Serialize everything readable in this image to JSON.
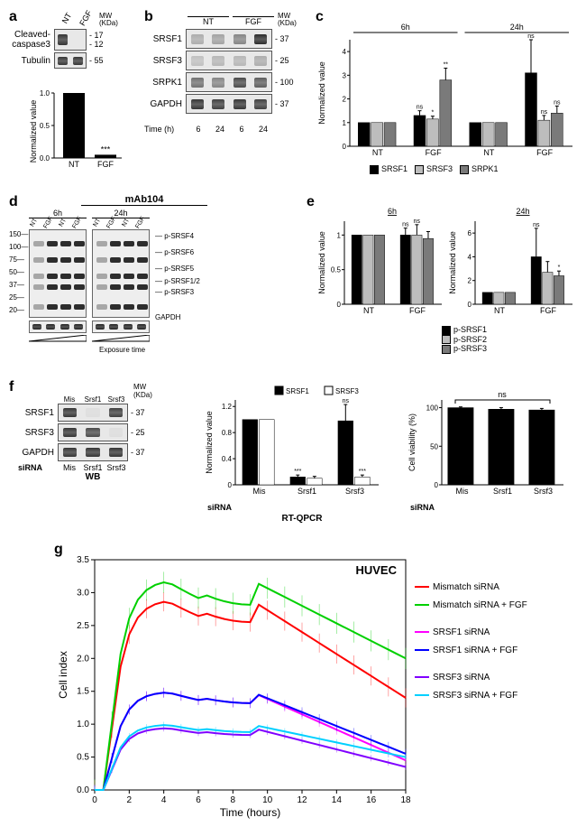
{
  "panel_a": {
    "label": "a",
    "lanes": [
      "NT",
      "FGF"
    ],
    "mw_header": "MW\n(KDa)",
    "rows": [
      {
        "label": "Cleaved-\ncaspase3",
        "mw": [
          "17",
          "12"
        ],
        "bands": [
          0.9,
          0.0,
          0.7,
          0.0
        ]
      },
      {
        "label": "Tubulin",
        "mw": [
          "55"
        ],
        "bands": [
          0.9,
          0.9
        ]
      }
    ],
    "chart": {
      "ylab": "Normalized value",
      "ymax": 1.0,
      "bars": [
        {
          "x": "NT",
          "v": 1.0
        },
        {
          "x": "FGF",
          "v": 0.05
        }
      ],
      "sig": "***",
      "bar_color": "#000000"
    }
  },
  "panel_b": {
    "label": "b",
    "cond": [
      "NT",
      "FGF"
    ],
    "mw_header": "MW\n(KDa)",
    "time_label": "Time (h)",
    "time": [
      "6",
      "24",
      "6",
      "24"
    ],
    "rows": [
      {
        "label": "SRSF1",
        "mw": "37",
        "bands": [
          0.3,
          0.35,
          0.5,
          0.95
        ]
      },
      {
        "label": "SRSF3",
        "mw": "25",
        "bands": [
          0.2,
          0.25,
          0.25,
          0.3
        ]
      },
      {
        "label": "SRPK1",
        "mw": "100",
        "bands": [
          0.6,
          0.5,
          0.8,
          0.7
        ]
      },
      {
        "label": "GAPDH",
        "mw": "37",
        "bands": [
          0.9,
          0.85,
          0.9,
          0.85
        ]
      }
    ]
  },
  "panel_c": {
    "label": "c",
    "ylab": "Normalized value",
    "ymax": 4.5,
    "groups": [
      "NT",
      "FGF",
      "NT",
      "FGF"
    ],
    "group_spans": [
      {
        "label": "6h",
        "cols": [
          0,
          1
        ]
      },
      {
        "label": "24h",
        "cols": [
          2,
          3
        ]
      }
    ],
    "series": [
      {
        "name": "SRSF1",
        "color": "#000000",
        "vals": [
          1.0,
          1.3,
          1.0,
          3.1
        ],
        "err": [
          0,
          0.2,
          0,
          1.4
        ],
        "sig": [
          "",
          "ns",
          "",
          "ns"
        ]
      },
      {
        "name": "SRSF3",
        "color": "#bdbdbd",
        "vals": [
          1.0,
          1.15,
          1.0,
          1.1
        ],
        "err": [
          0,
          0.12,
          0,
          0.2
        ],
        "sig": [
          "",
          "*",
          "",
          "ns"
        ]
      },
      {
        "name": "SRPK1",
        "color": "#7a7a7a",
        "vals": [
          1.0,
          2.8,
          1.0,
          1.4
        ],
        "err": [
          0,
          0.5,
          0,
          0.3
        ],
        "sig": [
          "",
          "**",
          "",
          "ns"
        ]
      }
    ]
  },
  "panel_d": {
    "label": "d",
    "title": "mAb104",
    "time_groups": [
      "6h",
      "24h"
    ],
    "lanes": [
      "NT",
      "FGF",
      "NT",
      "FGF"
    ],
    "mw_ladder": [
      "150",
      "100",
      "75",
      "50",
      "37",
      "25",
      "20"
    ],
    "row_labels": [
      "p-SRSF4",
      "p-SRSF6",
      "p-SRSF5",
      "p-SRSF1/2",
      "p-SRSF3"
    ],
    "loading": "GAPDH",
    "exposure_label": "Exposure time"
  },
  "panel_e": {
    "label": "e",
    "ylab": "Normalized value",
    "charts": [
      {
        "title": "6h",
        "ymax": 1.2,
        "groups": [
          "NT",
          "FGF"
        ],
        "series": [
          {
            "name": "p-SRSF1",
            "color": "#000000",
            "vals": [
              1.0,
              1.0
            ],
            "err": [
              0,
              0.1
            ],
            "sig": [
              "",
              "ns"
            ]
          },
          {
            "name": "p-SRSF2",
            "color": "#bdbdbd",
            "vals": [
              1.0,
              1.0
            ],
            "err": [
              0,
              0.15
            ],
            "sig": [
              "",
              "ns"
            ]
          },
          {
            "name": "p-SRSF3",
            "color": "#7a7a7a",
            "vals": [
              1.0,
              0.95
            ],
            "err": [
              0,
              0.1
            ],
            "sig": [
              "",
              ""
            ]
          }
        ]
      },
      {
        "title": "24h",
        "ymax": 7.0,
        "groups": [
          "NT",
          "FGF"
        ],
        "series": [
          {
            "name": "p-SRSF1",
            "color": "#000000",
            "vals": [
              1.0,
              4.0
            ],
            "err": [
              0,
              2.4
            ],
            "sig": [
              "",
              "ns"
            ]
          },
          {
            "name": "p-SRSF2",
            "color": "#bdbdbd",
            "vals": [
              1.0,
              2.7
            ],
            "err": [
              0,
              0.9
            ],
            "sig": [
              "",
              ""
            ]
          },
          {
            "name": "p-SRSF3",
            "color": "#7a7a7a",
            "vals": [
              1.0,
              2.4
            ],
            "err": [
              0,
              0.4
            ],
            "sig": [
              "",
              "*"
            ]
          }
        ]
      }
    ],
    "legend": [
      "p-SRSF1",
      "p-SRSF2",
      "p-SRSF3"
    ],
    "legend_colors": [
      "#000000",
      "#bdbdbd",
      "#7a7a7a"
    ]
  },
  "panel_f": {
    "label": "f",
    "mw_header": "MW\n(KDa)",
    "lanes": [
      "Mis",
      "Srsf1",
      "Srsf3"
    ],
    "lane_label": "siRNA",
    "wb_title": "WB",
    "rows": [
      {
        "label": "SRSF1",
        "mw": "37",
        "bands": [
          0.9,
          0.05,
          0.85
        ]
      },
      {
        "label": "SRSF3",
        "mw": "25",
        "bands": [
          0.9,
          0.8,
          0.05
        ]
      },
      {
        "label": "GAPDH",
        "mw": "37",
        "bands": [
          0.9,
          0.9,
          0.9
        ]
      }
    ],
    "qpcr": {
      "ylab": "Normalized value",
      "title": "RT-QPCR",
      "ymax": 1.3,
      "groups": [
        "Mis",
        "Srsf1",
        "Srsf3"
      ],
      "series": [
        {
          "name": "SRSF1",
          "color": "#000000",
          "vals": [
            1.0,
            0.12,
            0.98
          ],
          "err": [
            0,
            0.03,
            0.25
          ],
          "sig": [
            "",
            "***",
            "ns"
          ]
        },
        {
          "name": "SRSF3",
          "color": "#ffffff",
          "vals": [
            1.0,
            0.1,
            0.12
          ],
          "err": [
            0,
            0.03,
            0.03
          ],
          "sig": [
            "",
            "",
            "***"
          ]
        }
      ],
      "legend": [
        "SRSF1",
        "SRSF3"
      ]
    },
    "viability": {
      "ylab": "Cell viability (%)",
      "ymax": 110,
      "groups": [
        "Mis",
        "Srsf1",
        "Srsf3"
      ],
      "vals": [
        100,
        98,
        97
      ],
      "err": [
        1,
        2,
        2
      ],
      "sig_bracket": "ns",
      "bar_color": "#000000"
    }
  },
  "panel_g": {
    "label": "g",
    "title": "HUVEC",
    "xlab": "Time (hours)",
    "ylab": "Cell index",
    "xlim": [
      0,
      18
    ],
    "ylim": [
      0,
      3.5
    ],
    "xticks": [
      0,
      2,
      4,
      6,
      8,
      10,
      12,
      14,
      16,
      18
    ],
    "yticks": [
      0,
      0.5,
      1.0,
      1.5,
      2.0,
      2.5,
      3.0,
      3.5
    ],
    "series": [
      {
        "name": "Mismatch siRNA",
        "color": "#ff0000",
        "peak": 2.9,
        "tail": 1.4
      },
      {
        "name": "Mismatch siRNA + FGF",
        "color": "#00d000",
        "peak": 3.2,
        "tail": 2.0
      },
      {
        "name": "SRSF1 siRNA",
        "color": "#ff00ff",
        "peak": 1.5,
        "tail": 0.45
      },
      {
        "name": "SRSF1 siRNA + FGF",
        "color": "#0000ff",
        "peak": 1.5,
        "tail": 0.55
      },
      {
        "name": "SRSF3 siRNA",
        "color": "#8000ff",
        "peak": 0.95,
        "tail": 0.35
      },
      {
        "name": "SRSF3 siRNA + FGF",
        "color": "#00d0ff",
        "peak": 1.0,
        "tail": 0.5
      }
    ]
  }
}
